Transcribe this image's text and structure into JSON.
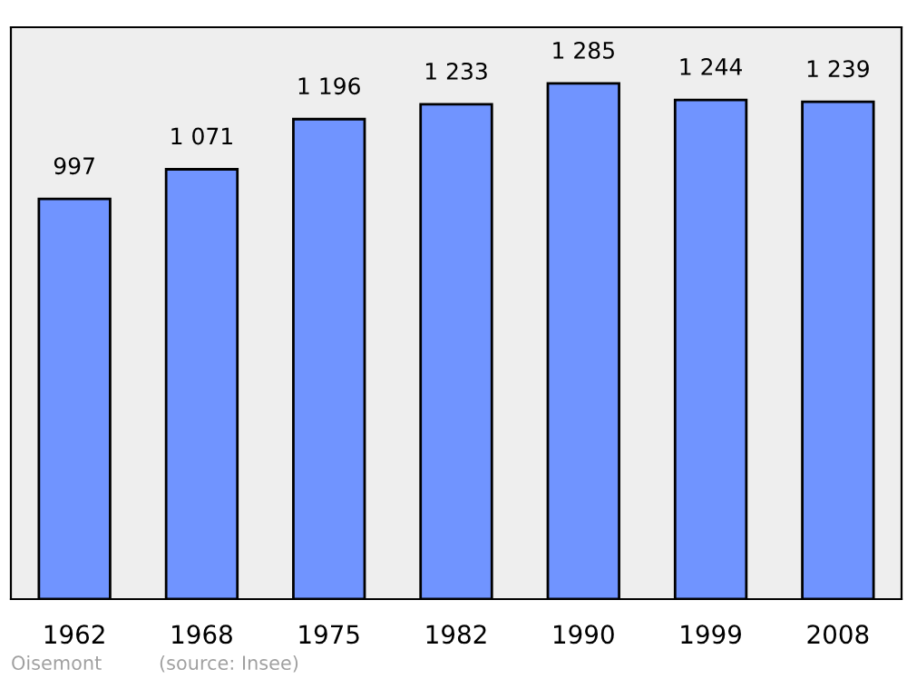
{
  "chart_data": {
    "type": "bar",
    "categories": [
      "1962",
      "1968",
      "1975",
      "1982",
      "1990",
      "1999",
      "2008"
    ],
    "values": [
      997,
      1071,
      1196,
      1233,
      1285,
      1244,
      1239
    ],
    "value_labels": [
      "997",
      "1 071",
      "1 196",
      "1 233",
      "1 285",
      "1 244",
      "1 239"
    ],
    "color": "#7094ff",
    "ylim": [
      0,
      1425
    ],
    "tick_labels": "x",
    "grid": false,
    "legend": false,
    "annotations": [
      "Oisemont",
      "(source: Insee)"
    ]
  }
}
